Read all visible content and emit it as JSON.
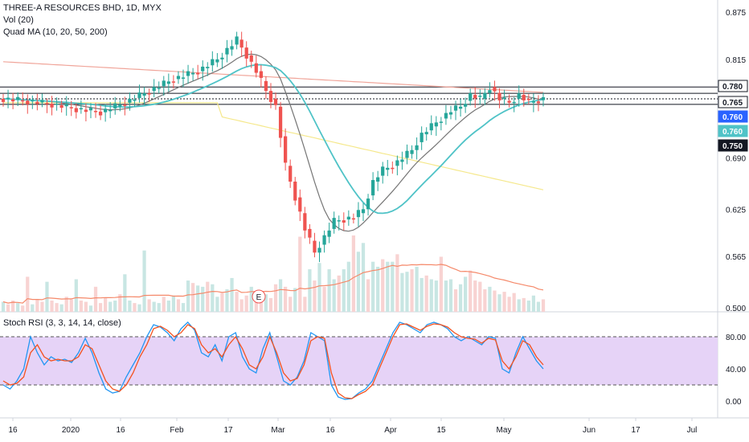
{
  "header": {
    "symbol_line": "THREE-A RESOURCES BHD, 1D, MYX",
    "volume_label": "Vol (20)",
    "ma_label": "Quad MA (10, 20, 50, 200)"
  },
  "rsi_header": {
    "label": "Stoch RSI (3, 3, 14, 14, close)"
  },
  "colors": {
    "up": "#26a69a",
    "down": "#ef5350",
    "ma10": "#757575",
    "ma20": "#4fc3c7",
    "ma50": "#f5e88c",
    "ma200": "#f0a59a",
    "stoch_k": "#2196f3",
    "stoch_d": "#f4511e",
    "rsi_band": "#e6d3f7",
    "vol_ma": "#f5896a"
  },
  "chart_data": [
    {
      "type": "candlestick",
      "title": "THREE-A RESOURCES BHD, 1D, MYX",
      "x_tick_labels": [
        "16",
        "2020",
        "16",
        "Feb",
        "17",
        "Mar",
        "16",
        "Apr",
        "15",
        "May",
        "Jun",
        "17",
        "Jul"
      ],
      "y_tick_labels": [
        "0.875",
        "0.815",
        "0.750",
        "0.690",
        "0.625",
        "0.565",
        "0.500"
      ],
      "ylim": [
        0.5,
        0.875
      ],
      "price_levels": [
        "0.780",
        "0.765",
        "0.760",
        "0.760",
        "0.750"
      ],
      "horizontal_lines": [
        0.78,
        0.772,
        0.765,
        0.758
      ],
      "event_marker": "E",
      "series": [
        {
          "name": "Vol (20)",
          "values": [
            8,
            6,
            9,
            7,
            5,
            28,
            6,
            10,
            8,
            24,
            9,
            7,
            6,
            12,
            10,
            26,
            9,
            8,
            5,
            20,
            7,
            11,
            8,
            9,
            14,
            30,
            9,
            7,
            6,
            49,
            10,
            8,
            7,
            12,
            9,
            13,
            10,
            7,
            25,
            23,
            21,
            20,
            24,
            22,
            12,
            15,
            18,
            27,
            16,
            10,
            13,
            20,
            8,
            9,
            14,
            11,
            22,
            26,
            20,
            12,
            19,
            60,
            12,
            34,
            25,
            39,
            20,
            34,
            26,
            29,
            34,
            40,
            61,
            48,
            55,
            26,
            40,
            36,
            42,
            40,
            40,
            46,
            31,
            32,
            34,
            36,
            27,
            29,
            26,
            25,
            44,
            25,
            26,
            18,
            22,
            28,
            33,
            25,
            24,
            18,
            20,
            17,
            14,
            16,
            12,
            15,
            10,
            11,
            9,
            13,
            8,
            10
          ]
        }
      ]
    },
    {
      "type": "line",
      "title": "Stoch RSI (3, 3, 14, 14, close)",
      "y_tick_labels": [
        "80.00",
        "40.00",
        "0.00"
      ],
      "ylim": [
        -10,
        100
      ],
      "band": [
        20,
        80
      ],
      "series": [
        {
          "name": "K",
          "values": [
            20,
            15,
            25,
            40,
            80,
            60,
            45,
            55,
            50,
            52,
            48,
            60,
            78,
            60,
            35,
            15,
            10,
            12,
            30,
            45,
            60,
            80,
            95,
            92,
            85,
            75,
            90,
            98,
            88,
            60,
            55,
            70,
            50,
            80,
            85,
            55,
            40,
            35,
            65,
            85,
            55,
            25,
            20,
            30,
            50,
            85,
            80,
            75,
            20,
            5,
            2,
            3,
            10,
            15,
            25,
            45,
            65,
            85,
            98,
            95,
            90,
            85,
            95,
            98,
            95,
            90,
            80,
            75,
            80,
            75,
            70,
            80,
            78,
            40,
            35,
            60,
            80,
            65,
            50,
            40
          ]
        },
        {
          "name": "D",
          "values": [
            25,
            20,
            22,
            30,
            60,
            70,
            55,
            50,
            52,
            50,
            50,
            55,
            70,
            65,
            45,
            25,
            15,
            12,
            20,
            35,
            55,
            70,
            90,
            93,
            88,
            80,
            85,
            95,
            90,
            70,
            60,
            65,
            55,
            70,
            80,
            65,
            45,
            40,
            55,
            80,
            60,
            35,
            25,
            28,
            45,
            75,
            80,
            78,
            35,
            10,
            4,
            3,
            8,
            12,
            20,
            40,
            60,
            80,
            95,
            96,
            92,
            88,
            93,
            96,
            95,
            92,
            85,
            80,
            78,
            77,
            72,
            78,
            76,
            50,
            40,
            55,
            75,
            70,
            55,
            45
          ]
        }
      ]
    }
  ]
}
